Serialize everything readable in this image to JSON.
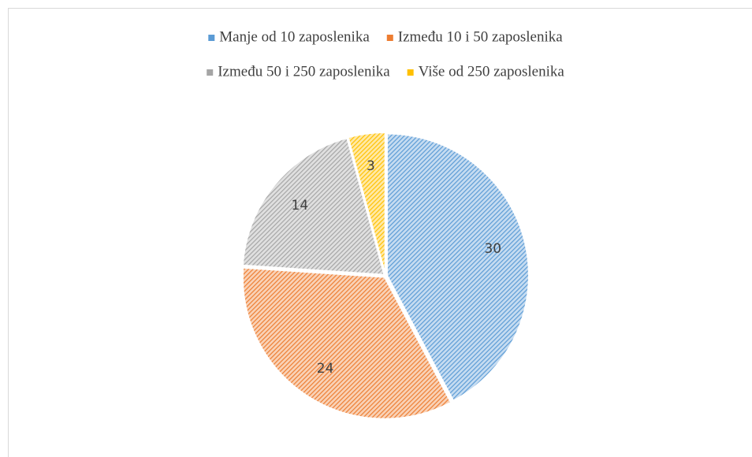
{
  "chart_data": {
    "type": "pie",
    "categories": [
      "Manje od 10 zaposlenika",
      "Između 10 i 50 zaposlenika",
      "Između 50 i 250 zaposlenika",
      "Više od 250 zaposlenika"
    ],
    "values": [
      30,
      24,
      14,
      3
    ],
    "colors": [
      "#5b9bd5",
      "#ed7d31",
      "#a5a5a5",
      "#ffc000"
    ],
    "legend": "top"
  }
}
